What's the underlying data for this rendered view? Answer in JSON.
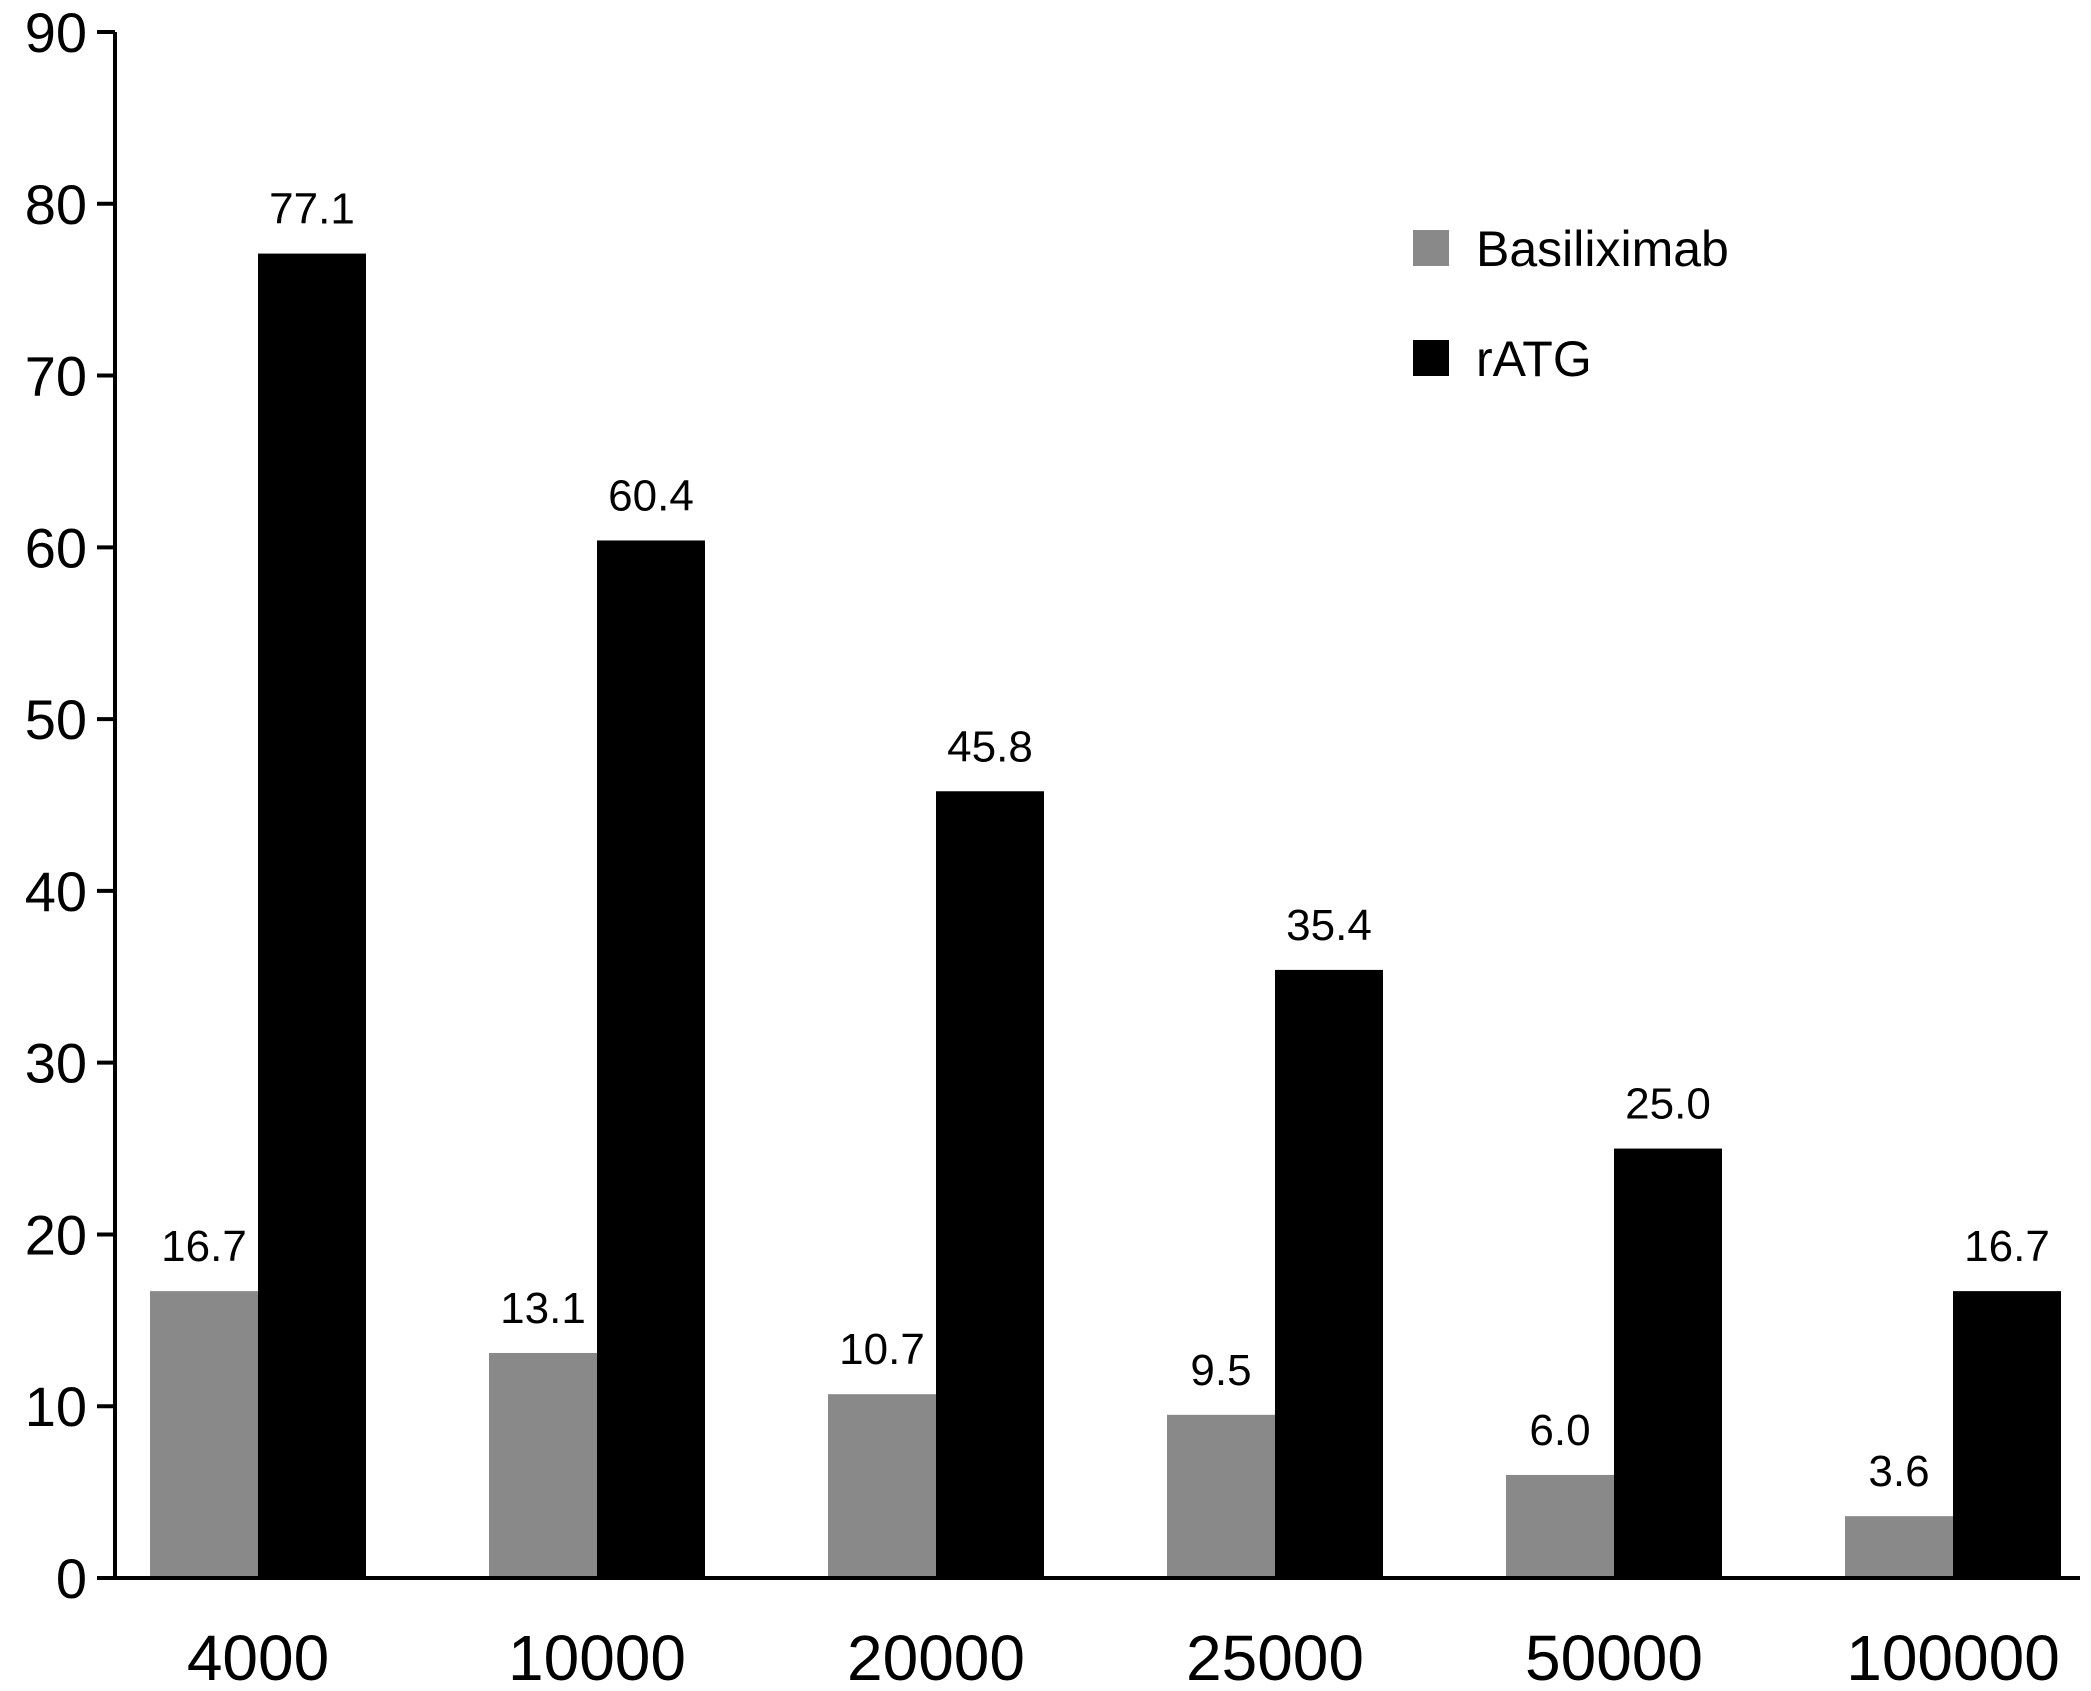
{
  "chart_data": {
    "type": "bar",
    "categories": [
      "4000",
      "10000",
      "20000",
      "25000",
      "50000",
      "100000"
    ],
    "series": [
      {
        "name": "Basiliximab",
        "color": "#898989",
        "values": [
          16.7,
          13.1,
          10.7,
          9.5,
          6.0,
          3.6
        ],
        "labels": [
          "16.7",
          "13.1",
          "10.7",
          "9.5",
          "6.0",
          "3.6"
        ]
      },
      {
        "name": "rATG",
        "color": "#000000",
        "values": [
          77.1,
          60.4,
          45.8,
          35.4,
          25.0,
          16.7
        ],
        "labels": [
          "77.1",
          "60.4",
          "45.8",
          "35.4",
          "25.0",
          "16.7"
        ]
      }
    ],
    "y_ticks": [
      "0",
      "10",
      "20",
      "30",
      "40",
      "50",
      "60",
      "70",
      "80",
      "90"
    ],
    "ylim": [
      0,
      90
    ],
    "title": "",
    "xlabel": "",
    "ylabel": "",
    "grid": false,
    "legend_position": "top-right"
  }
}
